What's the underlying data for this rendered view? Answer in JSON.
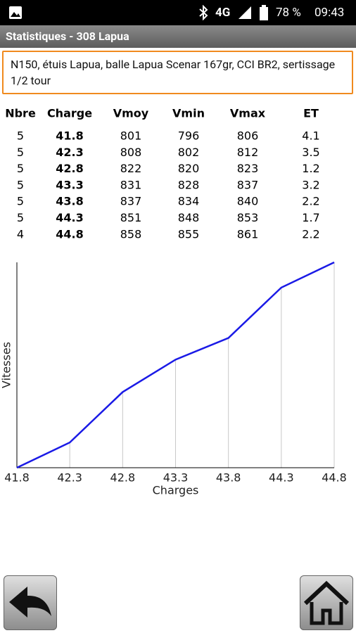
{
  "status": {
    "network": "4G",
    "battery": "78 %",
    "time": "09:43"
  },
  "header": {
    "title": "Statistiques - 308 Lapua"
  },
  "description": "N150, étuis Lapua, balle Lapua Scenar 167gr, CCI BR2, sertissage 1/2 tour",
  "table": {
    "headers": [
      "Nbre",
      "Charge",
      "Vmoy",
      "Vmin",
      "Vmax",
      "ET"
    ],
    "rows": [
      [
        5,
        41.8,
        801,
        796,
        806,
        4.1
      ],
      [
        5,
        42.3,
        808,
        802,
        812,
        3.5
      ],
      [
        5,
        42.8,
        822,
        820,
        823,
        1.2
      ],
      [
        5,
        43.3,
        831,
        828,
        837,
        3.2
      ],
      [
        5,
        43.8,
        837,
        834,
        840,
        2.2
      ],
      [
        5,
        44.3,
        851,
        848,
        853,
        1.7
      ],
      [
        4,
        44.8,
        858,
        855,
        861,
        2.2
      ]
    ]
  },
  "chart_data": {
    "type": "line",
    "x_label": "Charges",
    "y_label": "Vitesses",
    "x": [
      41.8,
      42.3,
      42.8,
      43.3,
      43.8,
      44.3,
      44.8
    ],
    "series": [
      {
        "name": "Vmoy",
        "color": "#1a1ae6",
        "values": [
          801,
          808,
          822,
          831,
          837,
          851,
          858
        ]
      }
    ],
    "xlim": [
      41.8,
      44.8
    ],
    "xticks": [
      41.8,
      42.3,
      42.8,
      43.3,
      43.8,
      44.3,
      44.8
    ],
    "ylim": [
      801,
      858
    ],
    "grid": true
  }
}
